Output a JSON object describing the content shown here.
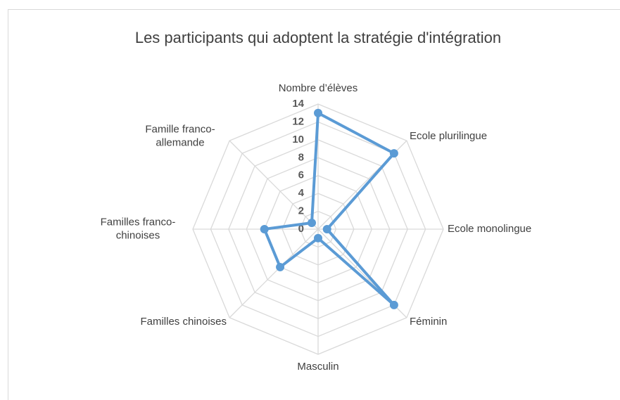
{
  "chart_data": {
    "type": "radar",
    "title": "Les participants qui adoptent la stratégie d'intégration",
    "categories": [
      "Nombre d’élèves",
      "Ecole plurilingue",
      "Ecole monolingue",
      "Féminin",
      "Masculin",
      "Familles chinoises",
      "Familles franco-\nchinoises",
      "Famille franco-\nallemande"
    ],
    "series": [
      {
        "color": "#5b9bd5",
        "values": [
          13,
          12,
          1,
          12,
          1,
          6,
          6,
          1
        ]
      }
    ],
    "rlim": [
      0,
      14
    ],
    "rticks": [
      0,
      2,
      4,
      6,
      8,
      10,
      12,
      14
    ],
    "grid": true
  }
}
